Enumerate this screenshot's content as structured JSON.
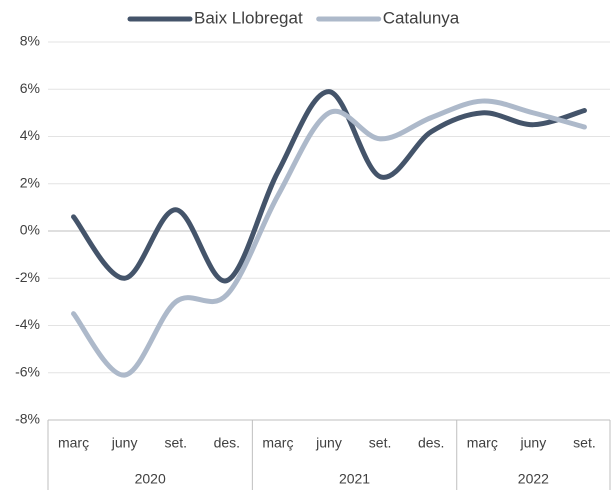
{
  "chart_data": {
    "type": "line",
    "category_groups": [
      {
        "name": "2020",
        "categories": [
          "març",
          "juny",
          "set.",
          "des."
        ]
      },
      {
        "name": "2021",
        "categories": [
          "març",
          "juny",
          "set.",
          "des."
        ]
      },
      {
        "name": "2022",
        "categories": [
          "març",
          "juny",
          "set."
        ]
      }
    ],
    "series": [
      {
        "name": "Baix Llobregat",
        "color": "#44546a",
        "values": [
          0.6,
          -2.0,
          0.9,
          -2.1,
          2.5,
          5.9,
          2.3,
          4.2,
          5.0,
          4.5,
          5.1
        ]
      },
      {
        "name": "Catalunya",
        "color": "#adb9ca",
        "values": [
          -3.5,
          -6.1,
          -3.0,
          -2.7,
          1.5,
          5.0,
          3.9,
          4.8,
          5.5,
          5.0,
          4.4
        ]
      }
    ],
    "ylim": [
      -8,
      8
    ],
    "yticks": [
      {
        "value": -8,
        "label": "-8%"
      },
      {
        "value": -6,
        "label": "-6%"
      },
      {
        "value": -4,
        "label": "-4%"
      },
      {
        "value": -2,
        "label": "-2%"
      },
      {
        "value": 0,
        "label": "0%"
      },
      {
        "value": 2,
        "label": "2%"
      },
      {
        "value": 4,
        "label": "4%"
      },
      {
        "value": 6,
        "label": "6%"
      },
      {
        "value": 8,
        "label": "8%"
      }
    ],
    "grid": true,
    "smooth": true,
    "legend": "top"
  }
}
